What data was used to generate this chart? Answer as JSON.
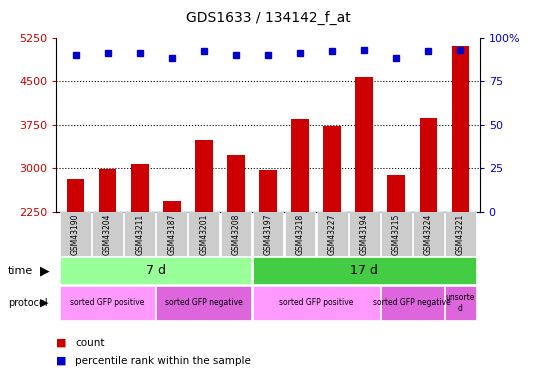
{
  "title": "GDS1633 / 134142_f_at",
  "samples": [
    "GSM43190",
    "GSM43204",
    "GSM43211",
    "GSM43187",
    "GSM43201",
    "GSM43208",
    "GSM43197",
    "GSM43218",
    "GSM43227",
    "GSM43194",
    "GSM43215",
    "GSM43224",
    "GSM43221"
  ],
  "counts": [
    2820,
    2990,
    3080,
    2430,
    3480,
    3230,
    2970,
    3850,
    3720,
    4570,
    2890,
    3870,
    5100
  ],
  "percentiles": [
    90,
    91,
    91,
    88,
    92,
    90,
    90,
    91,
    92,
    93,
    88,
    92,
    93
  ],
  "ylim_left": [
    2250,
    5250
  ],
  "ylim_right": [
    0,
    100
  ],
  "yticks_left": [
    2250,
    3000,
    3750,
    4500,
    5250
  ],
  "yticks_right": [
    0,
    25,
    50,
    75,
    100
  ],
  "bar_color": "#cc0000",
  "dot_color": "#0000cc",
  "bar_width": 0.55,
  "grid_color": "#000000",
  "bg_color": "#ffffff",
  "plot_bg": "#ffffff",
  "time_data": [
    {
      "label": "7 d",
      "start": 0,
      "end": 5,
      "color": "#99ff99"
    },
    {
      "label": "17 d",
      "start": 6,
      "end": 12,
      "color": "#44cc44"
    }
  ],
  "proto_data": [
    {
      "label": "sorted GFP positive",
      "start": 0,
      "end": 2,
      "color": "#ff99ff"
    },
    {
      "label": "sorted GFP negative",
      "start": 3,
      "end": 5,
      "color": "#dd66dd"
    },
    {
      "label": "sorted GFP positive",
      "start": 6,
      "end": 9,
      "color": "#ff99ff"
    },
    {
      "label": "sorted GFP negative",
      "start": 10,
      "end": 11,
      "color": "#dd66dd"
    },
    {
      "label": "unsorte\nd",
      "start": 12,
      "end": 12,
      "color": "#dd66dd"
    }
  ],
  "legend_count_color": "#cc0000",
  "legend_dot_color": "#0000cc"
}
